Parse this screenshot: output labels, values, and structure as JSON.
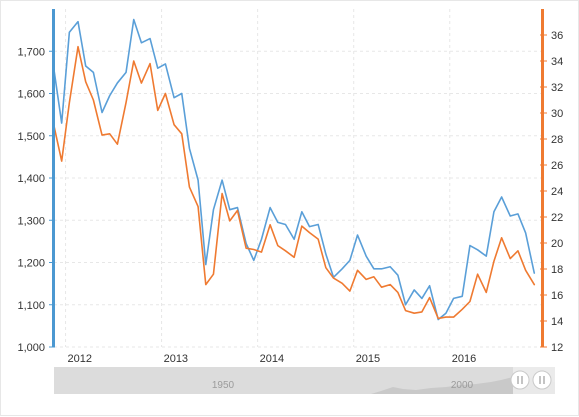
{
  "colors": {
    "left_axis": "#4b98d1",
    "right_axis": "#ef7a31",
    "series_left": "#5a9fd8",
    "series_right": "#ef7a31",
    "grid": "#e7e7e7",
    "navigator_bg": "#dcdcdc",
    "navigator_fill": "#c9c9c9"
  },
  "chart_data": {
    "type": "line",
    "title": "",
    "xlabel": "",
    "ylabel": "",
    "x_tick_labels": [
      "2012",
      "2013",
      "2014",
      "2015",
      "2016"
    ],
    "x_range": [
      2011.88,
      2016.95
    ],
    "left_axis": {
      "range": [
        1000,
        1800
      ],
      "ticks": [
        1000,
        1100,
        1200,
        1300,
        1400,
        1500,
        1600,
        1700
      ],
      "tick_labels": [
        "1,000",
        "1,100",
        "1,200",
        "1,300",
        "1,400",
        "1,500",
        "1,600",
        "1,700"
      ]
    },
    "right_axis": {
      "range": [
        12,
        38
      ],
      "ticks": [
        12,
        14,
        16,
        18,
        20,
        22,
        24,
        26,
        28,
        30,
        32,
        34,
        36
      ],
      "tick_labels": [
        "12",
        "14",
        "16",
        "18",
        "20",
        "22",
        "24",
        "26",
        "28",
        "30",
        "32",
        "34",
        "36"
      ]
    },
    "grid": true,
    "series": [
      {
        "axis": "left",
        "x": [
          2011.88,
          2011.96,
          2012.04,
          2012.13,
          2012.21,
          2012.29,
          2012.38,
          2012.46,
          2012.54,
          2012.63,
          2012.71,
          2012.79,
          2012.88,
          2012.96,
          2013.04,
          2013.13,
          2013.21,
          2013.29,
          2013.38,
          2013.46,
          2013.54,
          2013.63,
          2013.71,
          2013.79,
          2013.88,
          2013.96,
          2014.04,
          2014.13,
          2014.21,
          2014.29,
          2014.38,
          2014.46,
          2014.54,
          2014.63,
          2014.71,
          2014.79,
          2014.88,
          2014.96,
          2015.04,
          2015.13,
          2015.21,
          2015.29,
          2015.38,
          2015.46,
          2015.54,
          2015.63,
          2015.71,
          2015.79,
          2015.88,
          2015.96,
          2016.04,
          2016.13,
          2016.21,
          2016.29,
          2016.38,
          2016.46,
          2016.54,
          2016.63,
          2016.71,
          2016.79,
          2016.88
        ],
        "values": [
          1656,
          1530,
          1745,
          1770,
          1665,
          1650,
          1555,
          1595,
          1625,
          1650,
          1775,
          1720,
          1730,
          1660,
          1670,
          1590,
          1600,
          1470,
          1395,
          1195,
          1325,
          1395,
          1325,
          1330,
          1245,
          1205,
          1255,
          1330,
          1295,
          1290,
          1255,
          1320,
          1285,
          1290,
          1220,
          1165,
          1185,
          1205,
          1265,
          1215,
          1185,
          1185,
          1190,
          1170,
          1100,
          1135,
          1115,
          1145,
          1065,
          1080,
          1115,
          1120,
          1240,
          1230,
          1215,
          1320,
          1355,
          1310,
          1315,
          1270,
          1175
        ]
      },
      {
        "axis": "right",
        "x": [
          2011.88,
          2011.96,
          2012.04,
          2012.13,
          2012.21,
          2012.29,
          2012.38,
          2012.46,
          2012.54,
          2012.63,
          2012.71,
          2012.79,
          2012.88,
          2012.96,
          2013.04,
          2013.13,
          2013.21,
          2013.29,
          2013.38,
          2013.46,
          2013.54,
          2013.63,
          2013.71,
          2013.79,
          2013.88,
          2013.96,
          2014.04,
          2014.13,
          2014.21,
          2014.29,
          2014.38,
          2014.46,
          2014.54,
          2014.63,
          2014.71,
          2014.79,
          2014.88,
          2014.96,
          2015.04,
          2015.13,
          2015.21,
          2015.29,
          2015.38,
          2015.46,
          2015.54,
          2015.63,
          2015.71,
          2015.79,
          2015.88,
          2015.96,
          2016.04,
          2016.13,
          2016.21,
          2016.29,
          2016.38,
          2016.46,
          2016.54,
          2016.63,
          2016.71,
          2016.79,
          2016.88
        ],
        "values": [
          29.0,
          26.3,
          30.8,
          35.1,
          32.4,
          31.0,
          28.3,
          28.4,
          27.6,
          30.8,
          34.0,
          32.3,
          33.8,
          30.2,
          31.5,
          29.1,
          28.4,
          24.3,
          22.8,
          16.8,
          17.6,
          23.8,
          21.7,
          22.5,
          19.6,
          19.5,
          19.3,
          21.4,
          19.8,
          19.4,
          18.9,
          21.3,
          20.8,
          20.3,
          18.1,
          17.3,
          16.9,
          16.3,
          17.9,
          17.2,
          17.4,
          16.6,
          16.8,
          16.2,
          14.8,
          14.6,
          14.7,
          15.8,
          14.2,
          14.3,
          14.3,
          14.9,
          15.5,
          17.6,
          16.2,
          18.6,
          20.4,
          18.8,
          19.4,
          17.9,
          16.8
        ]
      }
    ]
  },
  "navigator": {
    "labels": [
      "1950",
      "2000"
    ],
    "handle_icons": [
      "pause-handle-icon",
      "pause-handle-icon"
    ]
  }
}
